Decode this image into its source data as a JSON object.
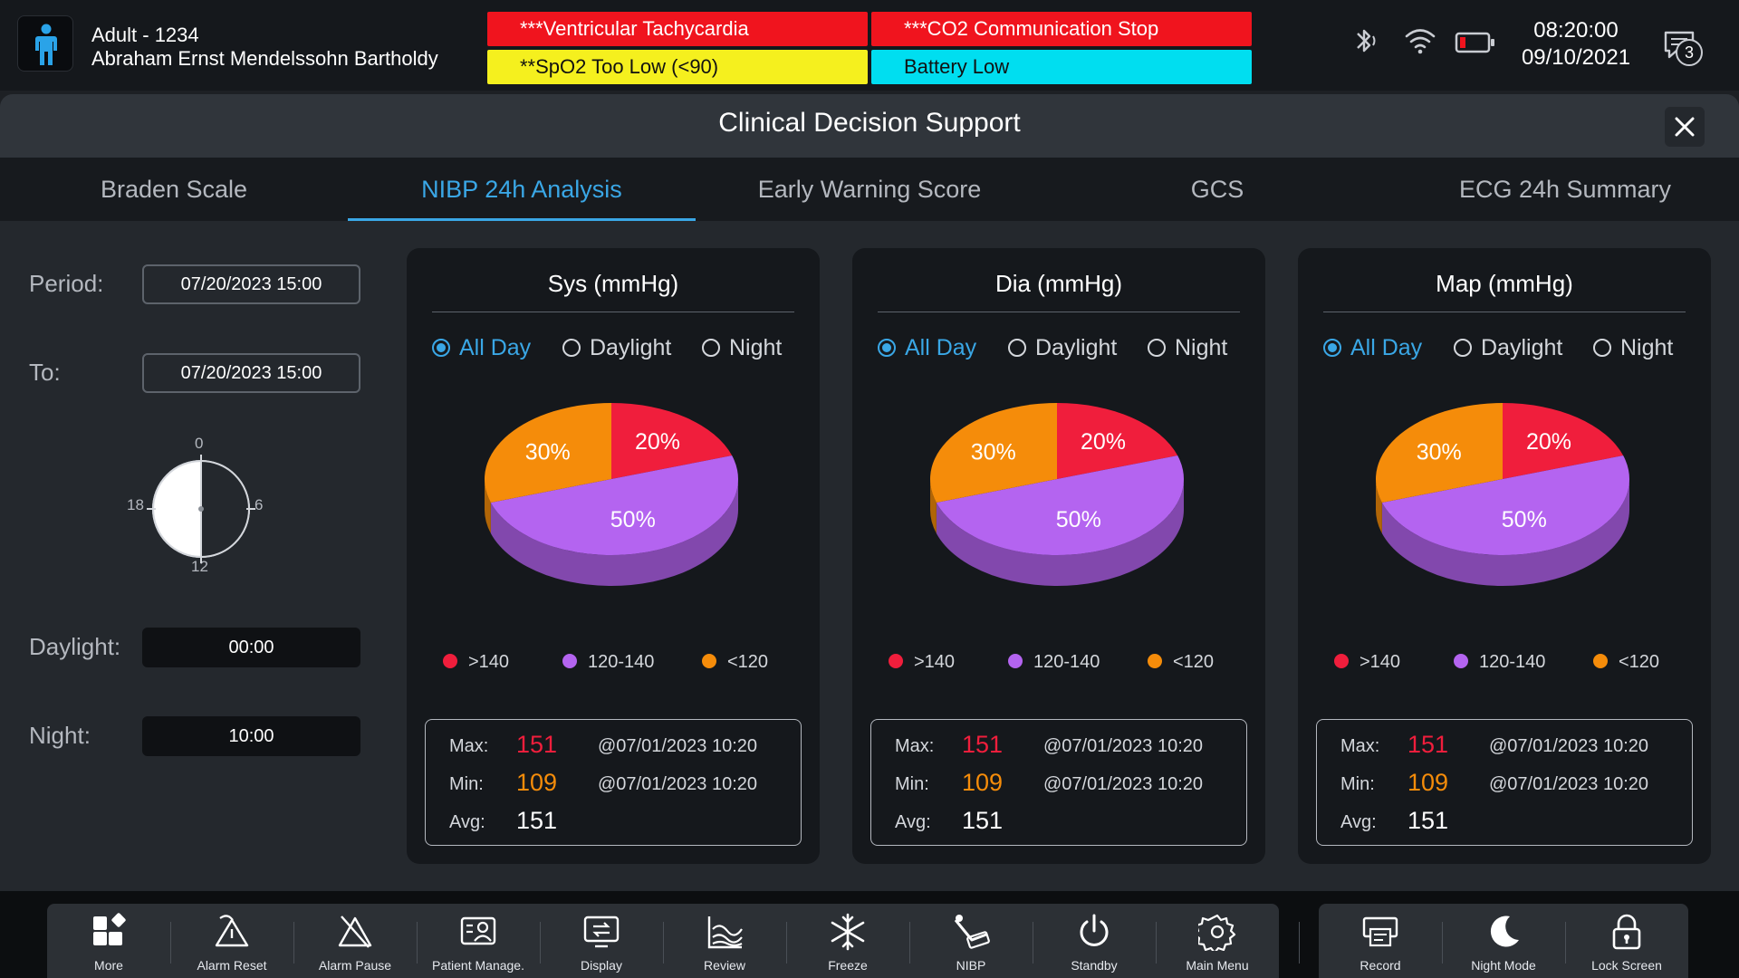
{
  "patient": {
    "line1": "Adult - 1234",
    "line2": "Abraham Ernst Mendelssohn Bartholdy"
  },
  "alarms": [
    {
      "text": "***Ventricular Tachycardia",
      "color": "#f0141e"
    },
    {
      "text": "***CO2 Communication Stop",
      "color": "#f0141e"
    },
    {
      "text": "**SpO2 Too Low (<90)",
      "color": "#f5f01e"
    },
    {
      "text": "Battery Low",
      "color": "#00def0"
    }
  ],
  "status": {
    "icons": [
      "bluetooth-icon",
      "wifi-icon",
      "battery-low-icon"
    ],
    "time": "08:20:00",
    "date": "09/10/2021",
    "message_count": "3"
  },
  "dialog": {
    "title": "Clinical Decision Support"
  },
  "tabs": [
    {
      "label": "Braden Scale",
      "active": false
    },
    {
      "label": "NIBP 24h Analysis",
      "active": true
    },
    {
      "label": "Early Warning Score",
      "active": false
    },
    {
      "label": "GCS",
      "active": false
    },
    {
      "label": "ECG 24h Summary",
      "active": false
    }
  ],
  "settings": {
    "period_label": "Period:",
    "period_value": "07/20/2023 15:00",
    "to_label": "To:",
    "to_value": "07/20/2023 15:00",
    "dial_labels": {
      "top": "0",
      "right": "6",
      "bottom": "12",
      "left": "18"
    },
    "daylight_label": "Daylight:",
    "daylight_value": "00:00",
    "night_label": "Night:",
    "night_value": "10:00"
  },
  "radio_options": {
    "all_day": "All Day",
    "daylight": "Daylight",
    "night": "Night",
    "selected": "All Day"
  },
  "stat_labels": {
    "max": "Max:",
    "min": "Min:",
    "avg": "Avg:"
  },
  "chart_data": [
    {
      "type": "pie",
      "title": "Sys (mmHg)",
      "categories": [
        ">140",
        "120-140",
        "<120"
      ],
      "values": [
        20,
        50,
        30
      ],
      "labels": [
        "20%",
        "50%",
        "30%"
      ],
      "colors": [
        "#f01e3c",
        "#b464f0",
        "#f58c0a"
      ],
      "stats": {
        "max": "151",
        "max_time": "@07/01/2023 10:20",
        "min": "109",
        "min_time": "@07/01/2023 10:20",
        "avg": "151"
      }
    },
    {
      "type": "pie",
      "title": "Dia (mmHg)",
      "categories": [
        ">140",
        "120-140",
        "<120"
      ],
      "values": [
        20,
        50,
        30
      ],
      "labels": [
        "20%",
        "50%",
        "30%"
      ],
      "colors": [
        "#f01e3c",
        "#b464f0",
        "#f58c0a"
      ],
      "stats": {
        "max": "151",
        "max_time": "@07/01/2023 10:20",
        "min": "109",
        "min_time": "@07/01/2023 10:20",
        "avg": "151"
      }
    },
    {
      "type": "pie",
      "title": "Map (mmHg)",
      "categories": [
        ">140",
        "120-140",
        "<120"
      ],
      "values": [
        20,
        50,
        30
      ],
      "labels": [
        "20%",
        "50%",
        "30%"
      ],
      "colors": [
        "#f01e3c",
        "#b464f0",
        "#f58c0a"
      ],
      "stats": {
        "max": "151",
        "max_time": "@07/01/2023 10:20",
        "min": "109",
        "min_time": "@07/01/2023 10:20",
        "avg": "151"
      }
    }
  ],
  "colors": {
    "accent": "#3aa7e6",
    "max_value": "#f01e3c",
    "min_value": "#f58c0a"
  },
  "toolbar": {
    "main": [
      {
        "label": "More",
        "icon": "more-icon"
      },
      {
        "label": "Alarm Reset",
        "icon": "alarm-reset-icon"
      },
      {
        "label": "Alarm Pause",
        "icon": "alarm-pause-icon"
      },
      {
        "label": "Patient Manage.",
        "icon": "patient-manage-icon"
      },
      {
        "label": "Display",
        "icon": "display-icon"
      },
      {
        "label": "Review",
        "icon": "review-icon"
      },
      {
        "label": "Freeze",
        "icon": "freeze-icon"
      },
      {
        "label": "NIBP",
        "icon": "nibp-icon"
      },
      {
        "label": "Standby",
        "icon": "standby-icon"
      },
      {
        "label": "Main Menu",
        "icon": "main-menu-icon"
      }
    ],
    "secondary": [
      {
        "label": "Record",
        "icon": "record-icon"
      },
      {
        "label": "Night Mode",
        "icon": "night-mode-icon"
      },
      {
        "label": "Lock Screen",
        "icon": "lock-screen-icon"
      }
    ]
  }
}
